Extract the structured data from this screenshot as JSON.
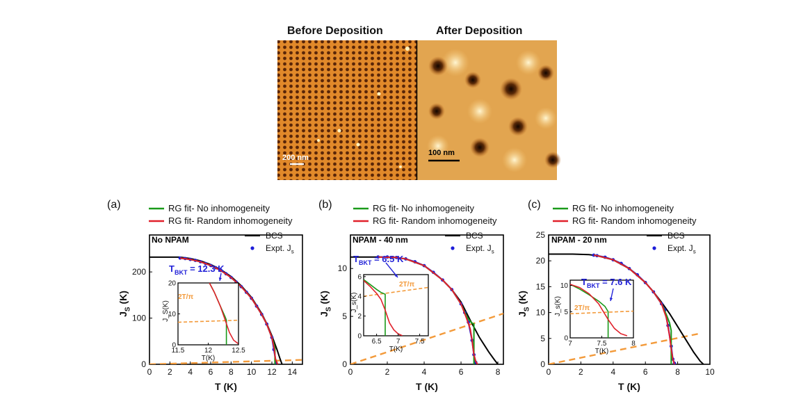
{
  "afm": {
    "before_title": "Before Deposition",
    "after_title": "After Deposition",
    "before_scale": "200 nm",
    "after_scale": "100 nm"
  },
  "colors": {
    "bcs": "#000000",
    "rg_none": "#1a9a1a",
    "rg_random": "#e0202a",
    "expt": "#1d1dd9",
    "line_2t": "#f39a3a",
    "tbkt_label": "#2323d8"
  },
  "chart_data": [
    {
      "type": "line",
      "panel_label": "(a)",
      "sample_label": "No NPAM",
      "legend_top": [
        "RG fit- No inhomogeneity",
        "RG fit- Random inhomogeneity"
      ],
      "legend_inner": [
        "BCS",
        "Expt. J_s"
      ],
      "xlabel": "T (K)",
      "ylabel": "J_S (K)",
      "xlim": [
        0,
        15
      ],
      "ylim": [
        0,
        280
      ],
      "xticks": [
        0,
        2,
        4,
        6,
        8,
        10,
        12,
        14
      ],
      "yticks": [
        0,
        100,
        200
      ],
      "tbkt_label": "T_BKT = 12.3 K",
      "series": [
        {
          "name": "BCS",
          "x": [
            0,
            3,
            4,
            5,
            6,
            7,
            8,
            9,
            10,
            11,
            11.5,
            12,
            12.5,
            12.8,
            13.0
          ],
          "y": [
            232,
            232,
            229,
            224,
            216,
            205,
            190,
            170,
            145,
            110,
            88,
            62,
            32,
            12,
            0
          ]
        },
        {
          "name": "RG fit- No inhomogeneity",
          "x": [
            3,
            4,
            5,
            6,
            7,
            8,
            9,
            10,
            11,
            11.5,
            12,
            12.25,
            12.3,
            12.3
          ],
          "y": [
            230,
            227,
            222,
            214,
            203,
            188,
            168,
            143,
            108,
            87,
            58,
            40,
            35,
            0
          ]
        },
        {
          "name": "RG fit- Random inhomogeneity",
          "x": [
            3,
            4,
            5,
            6,
            7,
            8,
            9,
            10,
            11,
            11.5,
            12,
            12.2,
            12.35,
            12.5,
            12.6
          ],
          "y": [
            230,
            227,
            222,
            214,
            203,
            188,
            168,
            143,
            108,
            87,
            58,
            38,
            12,
            3,
            0
          ]
        },
        {
          "name": "Expt. J_s",
          "x": [
            3,
            3.5,
            4,
            4.5,
            5,
            5.5,
            6,
            6.5,
            7,
            7.5,
            8,
            8.5,
            9,
            9.5,
            10,
            10.5,
            11,
            11.5,
            12,
            12.2,
            12.4
          ],
          "y": [
            230,
            229,
            227,
            225,
            222,
            218,
            214,
            209,
            203,
            196,
            188,
            178,
            168,
            156,
            143,
            126,
            108,
            87,
            58,
            32,
            4
          ]
        },
        {
          "name": "2T/pi",
          "x": [
            0,
            15
          ],
          "y": [
            0,
            9.5
          ]
        }
      ],
      "inset": {
        "xlabel": "T(K)",
        "ylabel": "J_S(K)",
        "xlim": [
          11.5,
          12.5
        ],
        "ylim": [
          0,
          20
        ],
        "xticks": [
          11.5,
          12.0,
          12.5
        ],
        "yticks": [
          0,
          10,
          20
        ],
        "line_label": "2T/π",
        "series": [
          {
            "name": "RG fit- No inhomogeneity",
            "x": [
              12.02,
              12.1,
              12.2,
              12.28,
              12.3,
              12.3
            ],
            "y": [
              20,
              17,
              12.5,
              9,
              8,
              0
            ]
          },
          {
            "name": "RG fit- Random inhomogeneity",
            "x": [
              12.02,
              12.1,
              12.2,
              12.28,
              12.35,
              12.42,
              12.5
            ],
            "y": [
              20,
              17,
              12.5,
              8,
              4,
              1.5,
              0.3
            ]
          },
          {
            "name": "2T/pi",
            "x": [
              11.5,
              12.5
            ],
            "y": [
              7.3,
              7.95
            ]
          }
        ]
      }
    },
    {
      "type": "line",
      "panel_label": "(b)",
      "sample_label": "NPAM - 40 nm",
      "legend_top": [
        "RG fit- No inhomogeneity",
        "RG fit- Random inhomogeneity"
      ],
      "legend_inner": [
        "BCS",
        "Expt. J_s"
      ],
      "xlabel": "T (K)",
      "ylabel": "J_S (K)",
      "xlim": [
        0,
        8.3
      ],
      "ylim": [
        0,
        13.5
      ],
      "xticks": [
        0,
        2,
        4,
        6,
        8
      ],
      "yticks": [
        0,
        5,
        10
      ],
      "tbkt_label": "T_BKT = 6.5 K",
      "series": [
        {
          "name": "BCS",
          "x": [
            0,
            1.5,
            2.5,
            3,
            4,
            5,
            5.5,
            6,
            6.5,
            7,
            7.5,
            7.8,
            8.0
          ],
          "y": [
            11.2,
            11.2,
            11.15,
            11.0,
            10.3,
            8.8,
            7.8,
            6.5,
            4.6,
            2.8,
            1.3,
            0.5,
            0
          ]
        },
        {
          "name": "RG fit- No inhomogeneity",
          "x": [
            1.5,
            2.5,
            3,
            4,
            5,
            5.5,
            6,
            6.3,
            6.5,
            6.6,
            6.7,
            6.7
          ],
          "y": [
            11.2,
            11.15,
            11.0,
            10.3,
            8.8,
            7.8,
            6.3,
            5.0,
            4.5,
            4.3,
            4.2,
            0
          ]
        },
        {
          "name": "RG fit- Random inhomogeneity",
          "x": [
            1.5,
            2.5,
            3,
            4,
            5,
            5.5,
            6,
            6.3,
            6.5,
            6.6,
            6.7,
            6.8,
            6.9
          ],
          "y": [
            11.2,
            11.15,
            11.0,
            10.3,
            8.8,
            7.8,
            6.3,
            4.8,
            3.7,
            2.5,
            1.0,
            0.3,
            0
          ]
        },
        {
          "name": "Expt. J_s",
          "x": [
            1.5,
            2,
            2.5,
            3,
            3.5,
            4,
            4.5,
            5,
            5.5,
            6,
            6.2,
            6.4,
            6.6,
            6.7,
            6.8
          ],
          "y": [
            11.2,
            11.2,
            11.15,
            11.0,
            10.7,
            10.3,
            9.6,
            8.8,
            7.8,
            6.3,
            5.4,
            4.4,
            2.5,
            1.0,
            0.2
          ]
        },
        {
          "name": "2T/pi",
          "x": [
            0,
            8.3
          ],
          "y": [
            0,
            5.3
          ]
        }
      ],
      "inset": {
        "xlabel": "T(K)",
        "ylabel": "J_s(K)",
        "xlim": [
          6.2,
          7.7
        ],
        "ylim": [
          0,
          6.2
        ],
        "xticks": [
          6.5,
          7.0,
          7.5
        ],
        "yticks": [
          0,
          2,
          4,
          6
        ],
        "line_label": "2T/π",
        "series": [
          {
            "name": "RG fit- No inhomogeneity",
            "x": [
              6.2,
              6.35,
              6.5,
              6.6,
              6.68,
              6.7,
              6.7
            ],
            "y": [
              5.7,
              5.2,
              4.7,
              4.4,
              4.25,
              4.2,
              0
            ]
          },
          {
            "name": "RG fit- Random inhomogeneity",
            "x": [
              6.2,
              6.35,
              6.5,
              6.6,
              6.7,
              6.8,
              6.9,
              7.0,
              7.1
            ],
            "y": [
              5.6,
              5.0,
              4.3,
              3.7,
              2.6,
              1.3,
              0.6,
              0.2,
              0
            ]
          },
          {
            "name": "2T/pi",
            "x": [
              6.2,
              7.7
            ],
            "y": [
              4.0,
              4.9
            ]
          }
        ]
      }
    },
    {
      "type": "line",
      "panel_label": "(c)",
      "sample_label": "NPAM - 20 nm",
      "legend_top": [
        "RG fit- No inhomogeneity",
        "RG fit- Random inhomogeneity"
      ],
      "legend_inner": [
        "BCS",
        "Expt. J_s"
      ],
      "xlabel": "T (K)",
      "ylabel": "J_S (K)",
      "xlim": [
        0,
        10
      ],
      "ylim": [
        0,
        25
      ],
      "xticks": [
        0,
        2,
        4,
        6,
        8,
        10
      ],
      "yticks": [
        0,
        5,
        10,
        15,
        20,
        25
      ],
      "tbkt_label": "T_BKT = 7.6 K",
      "series": [
        {
          "name": "BCS",
          "x": [
            0,
            1.5,
            2.5,
            3,
            4,
            5,
            6,
            6.5,
            7,
            7.5,
            8,
            8.5,
            9,
            9.4,
            9.6
          ],
          "y": [
            21.3,
            21.3,
            21.2,
            21.0,
            20.2,
            18.5,
            15.8,
            14.0,
            12.0,
            9.8,
            7.3,
            4.8,
            2.3,
            0.6,
            0
          ]
        },
        {
          "name": "RG fit- No inhomogeneity",
          "x": [
            2.8,
            3,
            4,
            5,
            6,
            6.5,
            7,
            7.3,
            7.5,
            7.6,
            7.6
          ],
          "y": [
            21.1,
            21.0,
            20.2,
            18.5,
            15.8,
            14.0,
            11.7,
            9.6,
            8.0,
            6.5,
            0
          ]
        },
        {
          "name": "RG fit- Random inhomogeneity",
          "x": [
            2.8,
            3,
            4,
            5,
            6,
            6.5,
            7,
            7.3,
            7.5,
            7.6,
            7.7,
            7.8
          ],
          "y": [
            21.1,
            21.0,
            20.2,
            18.5,
            15.8,
            14.0,
            11.7,
            9.0,
            5.5,
            3.0,
            1.0,
            0
          ]
        },
        {
          "name": "Expt. J_s",
          "x": [
            2.8,
            3,
            3.5,
            4,
            4.5,
            5,
            5.5,
            6,
            6.5,
            7,
            7.2,
            7.4,
            7.6,
            7.7,
            7.8
          ],
          "y": [
            21.1,
            21.0,
            20.7,
            20.2,
            19.5,
            18.5,
            17.3,
            15.8,
            14.0,
            11.7,
            10.5,
            7.5,
            3.5,
            1.0,
            0.2
          ]
        },
        {
          "name": "2T/pi",
          "x": [
            0,
            9.3
          ],
          "y": [
            0,
            5.9
          ]
        }
      ],
      "inset": {
        "xlabel": "T(K)",
        "ylabel": "J_s(K)",
        "xlim": [
          7.0,
          8.0
        ],
        "ylim": [
          0,
          11
        ],
        "xticks": [
          7.0,
          7.5,
          8.0
        ],
        "yticks": [
          0,
          5,
          10
        ],
        "line_label": "2T/π",
        "series": [
          {
            "name": "RG fit- No inhomogeneity",
            "x": [
              7.0,
              7.15,
              7.3,
              7.45,
              7.55,
              7.6,
              7.6
            ],
            "y": [
              10.2,
              9.3,
              8.2,
              7.0,
              6.0,
              5.0,
              0
            ]
          },
          {
            "name": "RG fit- Random inhomogeneity",
            "x": [
              7.0,
              7.15,
              7.3,
              7.45,
              7.6,
              7.7,
              7.8,
              7.9
            ],
            "y": [
              10.2,
              9.6,
              8.4,
              6.5,
              3.5,
              1.8,
              0.8,
              0.4
            ]
          },
          {
            "name": "2T/pi",
            "x": [
              7.0,
              8.0
            ],
            "y": [
              4.6,
              5.1
            ]
          }
        ]
      }
    }
  ]
}
